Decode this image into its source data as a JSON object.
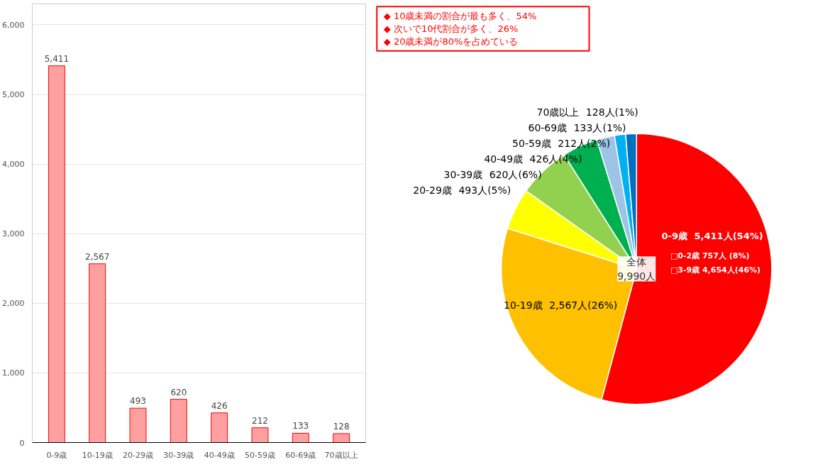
{
  "chart_data": [
    {
      "type": "pie",
      "categories": [
        "0-9歳",
        "10-19歳",
        "20-29歳",
        "30-39歳",
        "40-49歳",
        "50-59歳",
        "60-69歳",
        "70歳以上"
      ],
      "values": [
        5411,
        2567,
        493,
        620,
        426,
        212,
        133,
        128
      ],
      "value_labels": [
        "5,411人(54%)",
        "2,567人(26%)",
        "493人(5%)",
        "620人(6%)",
        "426人(4%)",
        "212人(2%)",
        "133人(1%)",
        "128人(1%)"
      ],
      "colors": [
        "#ff0000",
        "#ffc000",
        "#ffff00",
        "#92d050",
        "#00b050",
        "#9dc3e6",
        "#00b0f0",
        "#0070c0"
      ],
      "annotations": [
        "◆ 10歳未満の割合が最も多く、54%",
        "◆ 次いで10代割合が多く、26%",
        "◆ 20歳未満が80%を占めている",
        "□0-2歳 757人 (8%)",
        "□3-9歳 4,654人(46%)",
        "全体\n9,990人"
      ]
    },
    {
      "type": "bar",
      "categories": [
        "0-9歳",
        "10-19歳",
        "20-29歳",
        "30-39歳",
        "40-49歳",
        "50-59歳",
        "60-69歳",
        "70歳以上"
      ],
      "values": [
        5411,
        2567,
        493,
        620,
        426,
        212,
        133,
        128
      ],
      "value_labels": [
        "5,411",
        "2,567",
        "493",
        "620",
        "426",
        "212",
        "133",
        "128"
      ],
      "color": "#ffa0a0",
      "ylim": [
        0,
        6300
      ],
      "yticks": [
        0,
        {
          "value": 1000,
          "label": "1,000"
        },
        {
          "value": 2000,
          "label": "2,000"
        },
        {
          "value": 3000,
          "label": "3,000"
        },
        {
          "value": 4000,
          "label": "4,000"
        },
        {
          "value": 5000,
          "label": "5,000"
        },
        {
          "value": 6000,
          "label": "6,000"
        }
      ],
      "grid": "y"
    }
  ]
}
